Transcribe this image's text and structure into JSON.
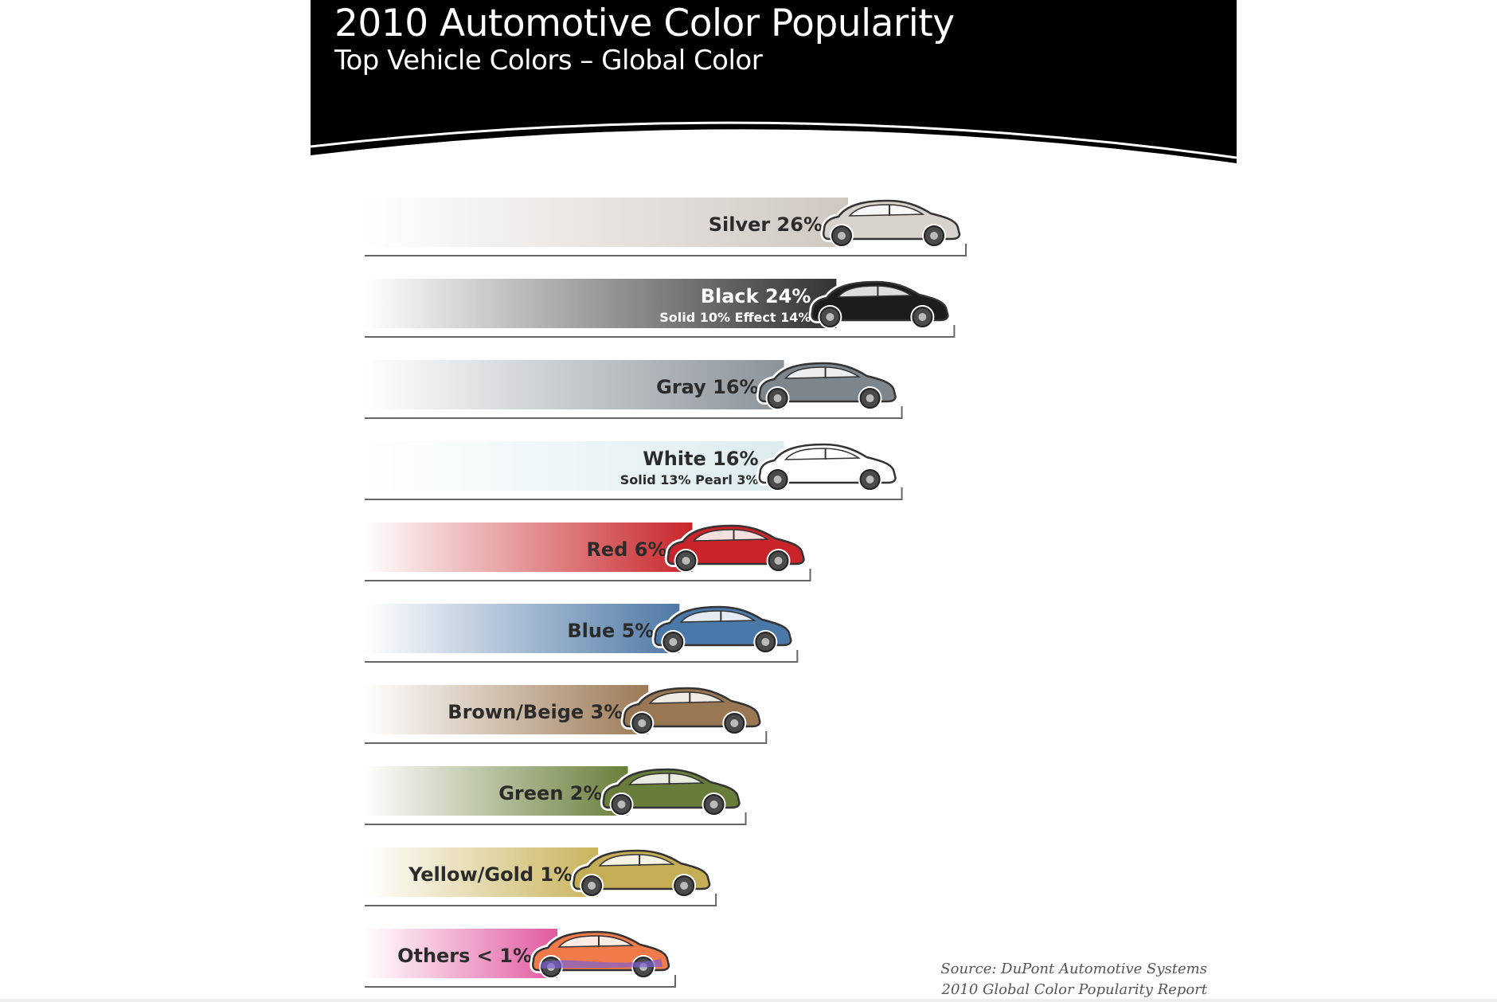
{
  "header": {
    "title": "2010 Automotive Color Popularity",
    "subtitle": "Top Vehicle Colors – Global Color"
  },
  "source": {
    "line1": "Source: DuPont Automotive Systems",
    "line2": "2010 Global Color Popularity Report"
  },
  "colors": {
    "header_bg": "#000000",
    "text_dark": "#2b2b2b",
    "text_light": "#ffffff",
    "tire": "#4a4a4a",
    "outline": "#333333"
  },
  "chart_data": {
    "type": "bar",
    "orientation": "horizontal",
    "title": "2010 Automotive Color Popularity",
    "subtitle": "Top Vehicle Colors – Global Color",
    "unit": "%",
    "categories": [
      "Silver",
      "Black",
      "Gray",
      "White",
      "Red",
      "Blue",
      "Brown/Beige",
      "Green",
      "Yellow/Gold",
      "Others"
    ],
    "bars": [
      {
        "name": "Silver",
        "label": "Silver 26%",
        "value": 26,
        "color": "#cfc8c1",
        "car_color": "#d8d2cc",
        "text_color": "#2b2b2b"
      },
      {
        "name": "Black",
        "label": "Black 24%",
        "value": 24,
        "color": "#333333",
        "car_color": "#1c1c1c",
        "text_color": "#ffffff",
        "sublabel": "Solid 10%   Effect 14%"
      },
      {
        "name": "Gray",
        "label": "Gray 16%",
        "value": 16,
        "color": "#8b939a",
        "car_color": "#7e868d",
        "text_color": "#2b2b2b"
      },
      {
        "name": "White",
        "label": "White 16%",
        "value": 16,
        "color": "#dcecef",
        "car_color": "#ffffff",
        "text_color": "#2b2b2b",
        "sublabel": "Solid 13%   Pearl 3%"
      },
      {
        "name": "Red",
        "label": "Red 6%",
        "value": 6,
        "color": "#c8262a",
        "car_color": "#c8242a",
        "text_color": "#2b2b2b"
      },
      {
        "name": "Blue",
        "label": "Blue 5%",
        "value": 5,
        "color": "#4f79a6",
        "car_color": "#4a78a8",
        "text_color": "#2b2b2b"
      },
      {
        "name": "Brown/Beige",
        "label": "Brown/Beige 3%",
        "value": 3,
        "color": "#9c7a55",
        "car_color": "#9a7753",
        "text_color": "#2b2b2b"
      },
      {
        "name": "Green",
        "label": "Green 2%",
        "value": 2,
        "color": "#6a7f3a",
        "car_color": "#687d3a",
        "text_color": "#2b2b2b"
      },
      {
        "name": "Yellow/Gold",
        "label": "Yellow/Gold 1%",
        "value": 1,
        "color": "#c9b45c",
        "car_color": "#c4ad55",
        "text_color": "#2b2b2b"
      },
      {
        "name": "Others",
        "label": "Others < 1%",
        "value": 0.5,
        "color": "#e25aa0",
        "car_color": "#f07a4a",
        "text_color": "#2b2b2b"
      }
    ],
    "xlim": [
      0,
      26
    ],
    "grid": false,
    "legend": "none"
  }
}
